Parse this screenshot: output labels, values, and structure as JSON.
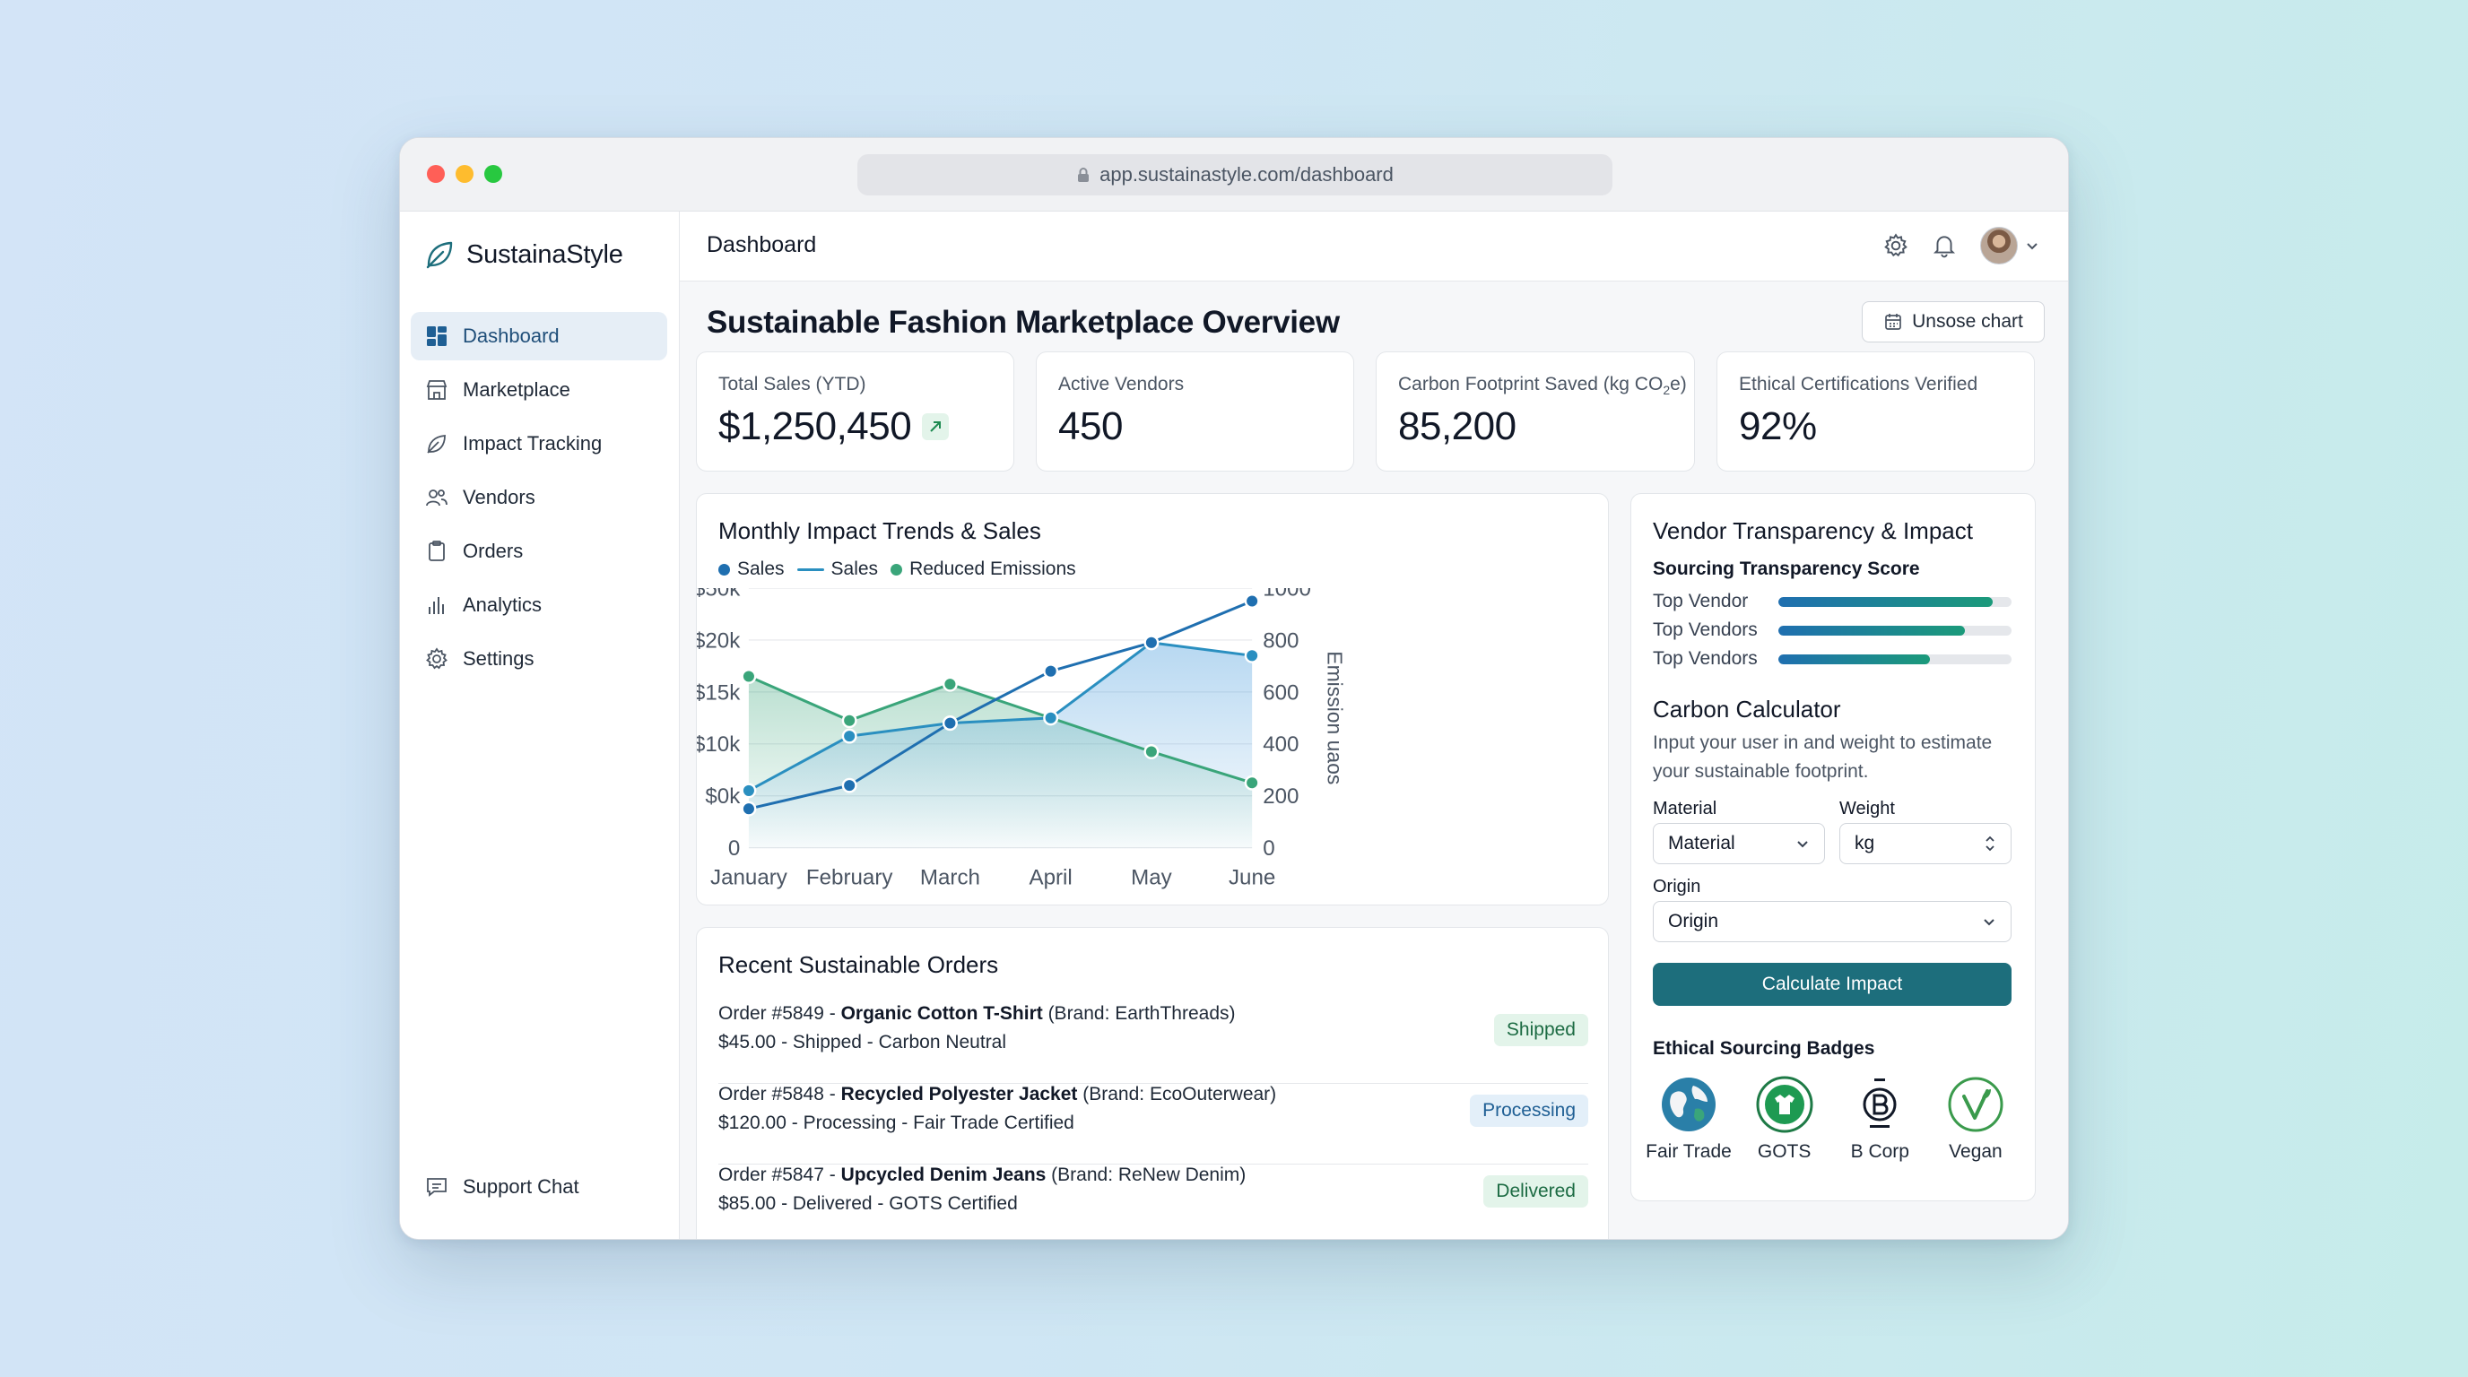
{
  "browser": {
    "url": "app.sustainastyle.com/dashboard"
  },
  "brand": {
    "name": "SustainaStyle"
  },
  "sidebar": {
    "items": [
      {
        "label": "Dashboard",
        "icon": "dashboard-icon",
        "active": true
      },
      {
        "label": "Marketplace",
        "icon": "store-icon"
      },
      {
        "label": "Impact Tracking",
        "icon": "leaf-icon"
      },
      {
        "label": "Vendors",
        "icon": "users-icon"
      },
      {
        "label": "Orders",
        "icon": "clipboard-icon"
      },
      {
        "label": "Analytics",
        "icon": "bar-chart-icon"
      },
      {
        "label": "Settings",
        "icon": "gear-icon"
      }
    ],
    "support": "Support Chat"
  },
  "topbar": {
    "title": "Dashboard"
  },
  "page": {
    "heading": "Sustainable Fashion Marketplace Overview",
    "action_button": "Unsose chart"
  },
  "kpis": [
    {
      "label": "Total Sales (YTD)",
      "value": "$1,250,450",
      "trend": "up"
    },
    {
      "label": "Active Vendors",
      "value": "450"
    },
    {
      "label_prefix": "Carbon Footprint Saved (kg CO",
      "label_sub": "2",
      "label_suffix": "e)",
      "value": "85,200"
    },
    {
      "label": "Ethical Certifications Verified",
      "value": "92%"
    }
  ],
  "chart_card": {
    "title": "Monthly Impact Trends & Sales",
    "legend": [
      {
        "label": "Sales",
        "marker": "dot",
        "color": "#1f6fb0"
      },
      {
        "label": "Sales",
        "marker": "line",
        "color": "#2a8fc0"
      },
      {
        "label": "Reduced Emissions",
        "marker": "dot",
        "color": "#3aa57a"
      }
    ]
  },
  "chart_data": {
    "type": "line",
    "categories": [
      "January",
      "February",
      "March",
      "April",
      "May",
      "June"
    ],
    "y_left_ticks": [
      "0",
      "$0k",
      "$10k",
      "$15k",
      "$20k",
      "$50k"
    ],
    "y_right_ticks": [
      "0",
      "200",
      "400",
      "600",
      "800",
      "1000"
    ],
    "y_right_label": "Emission uaos",
    "y_right_range": [
      0,
      1000
    ],
    "grid": true,
    "legend_position": "top-left",
    "series": [
      {
        "name": "Sales",
        "color": "#1f6fb0",
        "style": "line-dots",
        "values": [
          150,
          240,
          480,
          680,
          790,
          950
        ]
      },
      {
        "name": "Sales",
        "color": "#2a8fc0",
        "style": "area",
        "values": [
          220,
          430,
          480,
          500,
          790,
          740
        ]
      },
      {
        "name": "Reduced Emissions",
        "color": "#3aa57a",
        "style": "area",
        "values": [
          660,
          490,
          630,
          500,
          370,
          250
        ]
      }
    ]
  },
  "orders": {
    "title": "Recent Sustainable Orders",
    "items": [
      {
        "prefix": "Order #5849 - ",
        "product": "Organic Cotton T-Shirt",
        "brand": " (Brand: EarthThreads)",
        "detail": "$45.00 - Shipped - Carbon Neutral",
        "status": "Shipped",
        "status_color": "green"
      },
      {
        "prefix": "Order #5848 - ",
        "product": "Recycled Polyester Jacket",
        "brand": " (Brand: EcoOuterwear)",
        "detail": "$120.00 - Processing - Fair Trade Certified",
        "status": "Processing",
        "status_color": "blue"
      },
      {
        "prefix": "Order #5847 - ",
        "product": "Upcycled Denim Jeans",
        "brand": " (Brand: ReNew Denim)",
        "detail": "$85.00 - Delivered - GOTS Certified",
        "status": "Delivered",
        "status_color": "green"
      }
    ]
  },
  "vendor_panel": {
    "title": "Vendor Transparency & Impact",
    "score_title": "Sourcing Transparency Score",
    "bars": [
      {
        "label": "Top Vendor",
        "value": 0.92
      },
      {
        "label": "Top Vendors",
        "value": 0.8
      },
      {
        "label": "Top Vendors",
        "value": 0.65
      }
    ],
    "calculator": {
      "title": "Carbon Calculator",
      "description": "Input your user in and weight to estimate your sustainable footprint.",
      "material_label": "Material",
      "material_value": "Material",
      "weight_label": "Weight",
      "weight_value": "kg",
      "origin_label": "Origin",
      "origin_value": "Origin",
      "button": "Calculate Impact"
    },
    "badges_title": "Ethical Sourcing Badges",
    "badges": [
      {
        "label": "Fair Trade",
        "icon": "globe-icon"
      },
      {
        "label": "GOTS",
        "icon": "gots-seal-icon"
      },
      {
        "label": "B Corp",
        "icon": "b-corp-icon"
      },
      {
        "label": "Vegan",
        "icon": "vegan-leaf-icon"
      }
    ]
  }
}
